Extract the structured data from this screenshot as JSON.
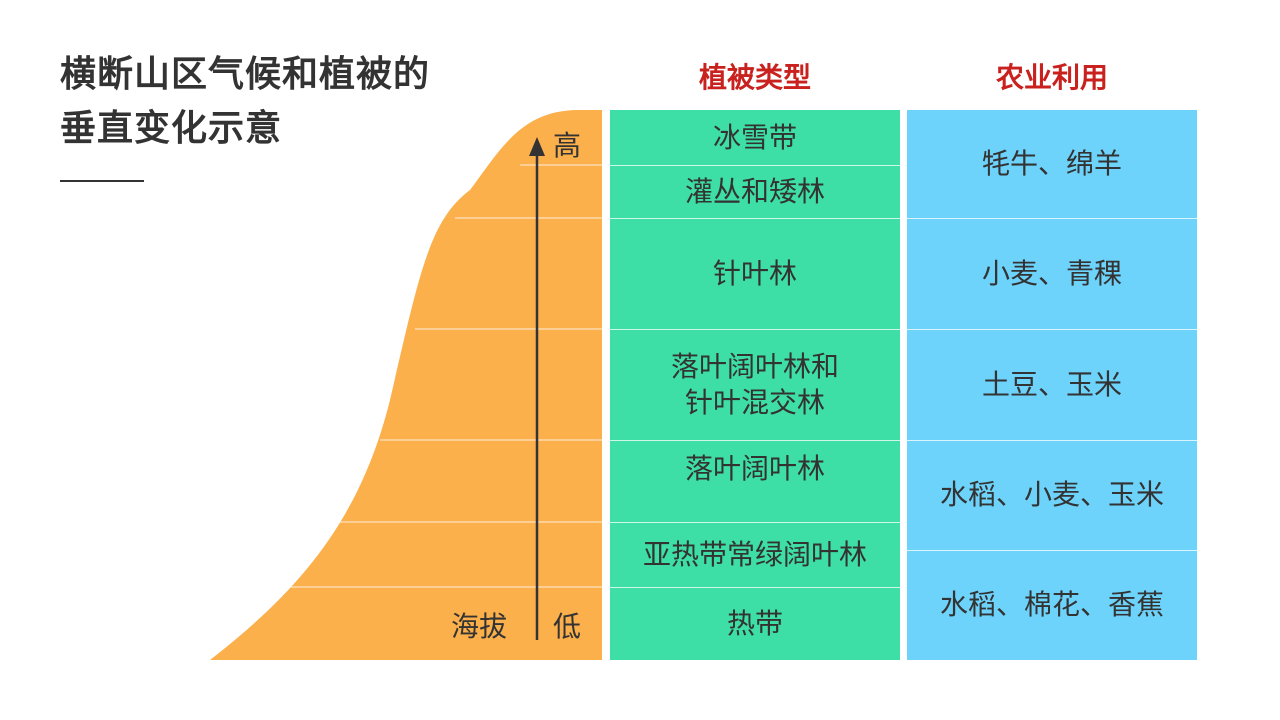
{
  "title": {
    "line1": "横断山区气候和植被的",
    "line2": "垂直变化示意"
  },
  "headers": {
    "vegetation": "植被类型",
    "agriculture": "农业利用"
  },
  "axis": {
    "label": "海拔",
    "high": "高",
    "low": "低"
  },
  "vegetation_types": [
    "冰雪带",
    "灌丛和矮林",
    "针叶林",
    "落叶阔叶林和\n针叶混交林",
    "落叶阔叶林",
    "亚热带常绿阔叶林",
    "热带"
  ],
  "agricultural_uses": [
    "牦牛、绵羊",
    "小麦、青稞",
    "土豆、玉米",
    "水稻、小麦、玉米",
    "水稻、棉花、香蕉"
  ],
  "colors": {
    "mountain": "#fbb04c",
    "vegetation_bg": "#3ddfa7",
    "agriculture_bg": "#6dd3fb",
    "header": "#c9211e",
    "text": "#333333"
  }
}
